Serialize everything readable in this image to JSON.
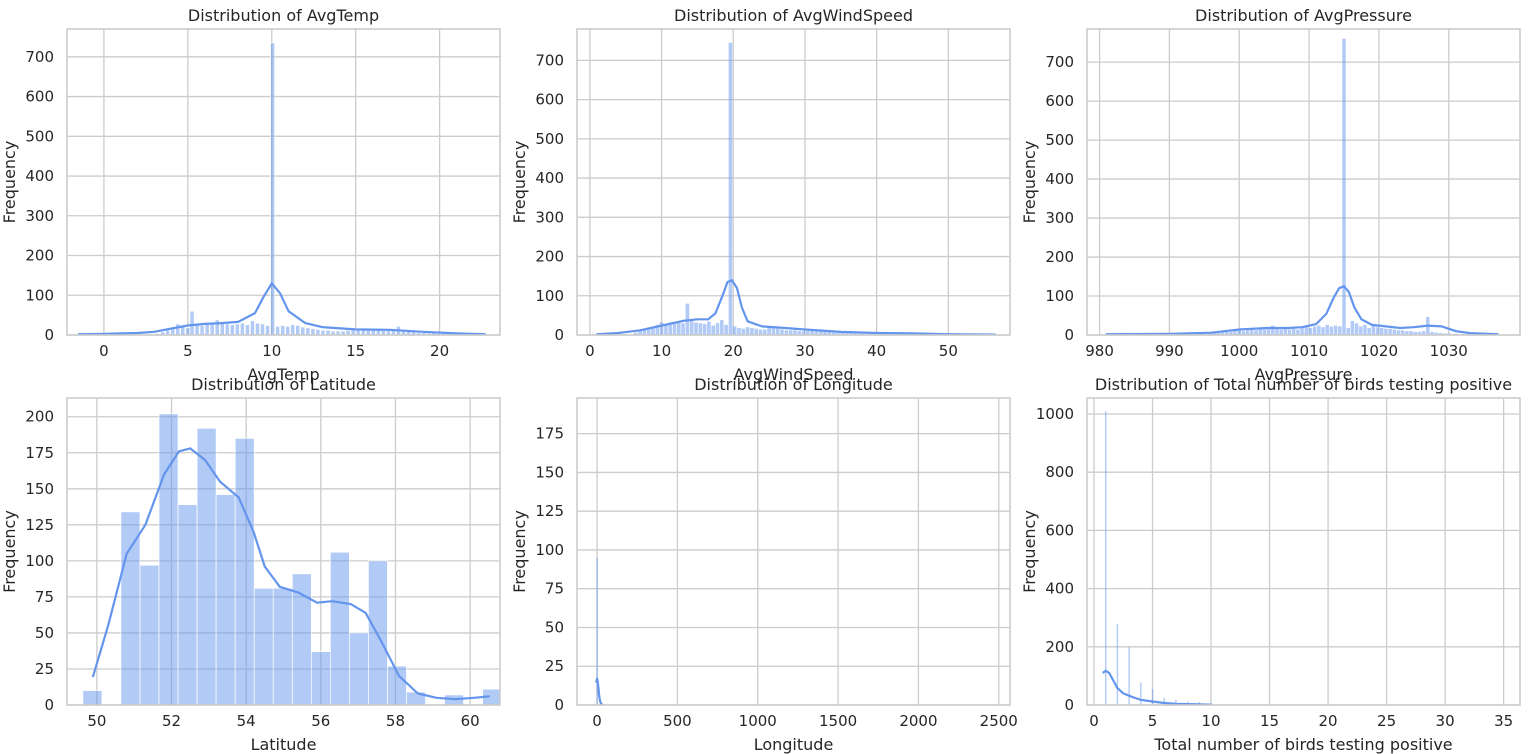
{
  "chart_data": [
    {
      "type": "bar",
      "title": "Distribution of AvgTemp",
      "xlabel": "AvgTemp",
      "ylabel": "Frequency",
      "xlim": [
        -2.2,
        23.6
      ],
      "ylim": [
        0,
        770
      ],
      "xticks": [
        0,
        5,
        10,
        15,
        20
      ],
      "yticks": [
        0,
        100,
        200,
        300,
        400,
        500,
        600,
        700
      ],
      "bin_width": 0.25,
      "bins": [
        [
          3.2,
          4
        ],
        [
          3.5,
          8
        ],
        [
          3.8,
          12
        ],
        [
          4.1,
          16
        ],
        [
          4.4,
          28
        ],
        [
          4.7,
          22
        ],
        [
          5.0,
          18
        ],
        [
          5.25,
          60
        ],
        [
          5.55,
          26
        ],
        [
          5.85,
          24
        ],
        [
          6.15,
          28
        ],
        [
          6.45,
          32
        ],
        [
          6.75,
          38
        ],
        [
          7.05,
          30
        ],
        [
          7.35,
          28
        ],
        [
          7.65,
          26
        ],
        [
          7.95,
          28
        ],
        [
          8.25,
          30
        ],
        [
          8.55,
          26
        ],
        [
          8.85,
          36
        ],
        [
          9.15,
          30
        ],
        [
          9.45,
          28
        ],
        [
          9.75,
          24
        ],
        [
          10.05,
          735
        ],
        [
          10.35,
          22
        ],
        [
          10.65,
          24
        ],
        [
          10.95,
          22
        ],
        [
          11.25,
          26
        ],
        [
          11.55,
          24
        ],
        [
          11.85,
          20
        ],
        [
          12.15,
          18
        ],
        [
          12.45,
          16
        ],
        [
          12.75,
          14
        ],
        [
          13.05,
          12
        ],
        [
          13.35,
          12
        ],
        [
          13.65,
          10
        ],
        [
          13.95,
          10
        ],
        [
          14.25,
          10
        ],
        [
          14.55,
          12
        ],
        [
          14.85,
          14
        ],
        [
          15.15,
          16
        ],
        [
          15.45,
          14
        ],
        [
          15.75,
          16
        ],
        [
          16.05,
          14
        ],
        [
          16.35,
          16
        ],
        [
          16.65,
          12
        ],
        [
          16.95,
          14
        ],
        [
          17.25,
          16
        ],
        [
          17.55,
          22
        ],
        [
          17.85,
          12
        ],
        [
          18.15,
          10
        ],
        [
          18.45,
          8
        ],
        [
          18.75,
          6
        ],
        [
          19.05,
          6
        ],
        [
          19.35,
          5
        ],
        [
          19.65,
          5
        ],
        [
          19.95,
          4
        ],
        [
          20.25,
          4
        ],
        [
          20.55,
          3
        ],
        [
          20.85,
          3
        ]
      ],
      "kde": {
        "x": [
          -1.5,
          0,
          1,
          2,
          3,
          4,
          5,
          6,
          7,
          8,
          9,
          9.5,
          10,
          10.5,
          11,
          12,
          13,
          15,
          17,
          19,
          21,
          22.7
        ],
        "y": [
          2,
          3,
          4,
          5,
          8,
          16,
          24,
          28,
          30,
          33,
          55,
          95,
          130,
          105,
          60,
          30,
          20,
          14,
          13,
          8,
          4,
          2
        ]
      }
    },
    {
      "type": "bar",
      "title": "Distribution of AvgWindSpeed",
      "xlabel": "AvgWindSpeed",
      "ylabel": "Frequency",
      "xlim": [
        -1.8,
        58.6
      ],
      "ylim": [
        0,
        780
      ],
      "xticks": [
        0,
        10,
        20,
        30,
        40,
        50
      ],
      "yticks": [
        0,
        100,
        200,
        300,
        400,
        500,
        600,
        700
      ],
      "bin_width": 0.5,
      "bins": [
        [
          6.4,
          6
        ],
        [
          7,
          10
        ],
        [
          7.6,
          14
        ],
        [
          8.2,
          18
        ],
        [
          8.8,
          22
        ],
        [
          9.4,
          26
        ],
        [
          10,
          32
        ],
        [
          10.6,
          28
        ],
        [
          11.2,
          26
        ],
        [
          11.8,
          30
        ],
        [
          12.4,
          34
        ],
        [
          13,
          30
        ],
        [
          13.6,
          80
        ],
        [
          14.2,
          36
        ],
        [
          14.8,
          32
        ],
        [
          15.4,
          30
        ],
        [
          16,
          28
        ],
        [
          16.6,
          34
        ],
        [
          17.2,
          24
        ],
        [
          17.8,
          30
        ],
        [
          18.4,
          38
        ],
        [
          19,
          26
        ],
        [
          19.6,
          745
        ],
        [
          20.2,
          22
        ],
        [
          20.8,
          18
        ],
        [
          21.4,
          16
        ],
        [
          22,
          20
        ],
        [
          22.6,
          18
        ],
        [
          23.2,
          16
        ],
        [
          23.8,
          14
        ],
        [
          24.4,
          14
        ],
        [
          25,
          20
        ],
        [
          25.6,
          18
        ],
        [
          26.2,
          16
        ],
        [
          26.8,
          14
        ],
        [
          27.4,
          12
        ],
        [
          28,
          12
        ],
        [
          28.6,
          12
        ],
        [
          29.2,
          10
        ],
        [
          29.8,
          10
        ],
        [
          30.4,
          10
        ],
        [
          31,
          12
        ],
        [
          31.6,
          14
        ],
        [
          32.2,
          12
        ],
        [
          32.8,
          8
        ],
        [
          33.4,
          8
        ],
        [
          34,
          6
        ],
        [
          34.6,
          6
        ],
        [
          35.2,
          5
        ],
        [
          35.8,
          5
        ],
        [
          36.4,
          4
        ],
        [
          37,
          4
        ],
        [
          37.6,
          3
        ],
        [
          38.2,
          3
        ],
        [
          38.8,
          3
        ],
        [
          39.4,
          2
        ],
        [
          40,
          2
        ],
        [
          42,
          2
        ],
        [
          44,
          1
        ]
      ],
      "kde": {
        "x": [
          1,
          4,
          7,
          9,
          11,
          13,
          15,
          16.5,
          17.5,
          18.5,
          19.2,
          19.8,
          20.5,
          21.2,
          22,
          24,
          27,
          30,
          35,
          40,
          45,
          50,
          56.5
        ],
        "y": [
          2,
          5,
          12,
          20,
          28,
          36,
          40,
          40,
          55,
          100,
          135,
          140,
          120,
          70,
          35,
          22,
          18,
          14,
          8,
          5,
          4,
          2,
          1
        ]
      }
    },
    {
      "type": "bar",
      "title": "Distribution of AvgPressure",
      "xlabel": "AvgPressure",
      "ylabel": "Frequency",
      "xlim": [
        978.2,
        1040.2
      ],
      "ylim": [
        0,
        785
      ],
      "xticks": [
        980,
        990,
        1000,
        1010,
        1020,
        1030
      ],
      "yticks": [
        0,
        100,
        200,
        300,
        400,
        500,
        600,
        700
      ],
      "bin_width": 0.5,
      "bins": [
        [
          994,
          4
        ],
        [
          994.6,
          4
        ],
        [
          995.2,
          5
        ],
        [
          995.8,
          5
        ],
        [
          996.4,
          6
        ],
        [
          997,
          6
        ],
        [
          997.6,
          7
        ],
        [
          998.2,
          8
        ],
        [
          998.8,
          8
        ],
        [
          999.4,
          10
        ],
        [
          1000,
          12
        ],
        [
          1000.6,
          10
        ],
        [
          1001.2,
          12
        ],
        [
          1001.8,
          14
        ],
        [
          1002.4,
          12
        ],
        [
          1003,
          16
        ],
        [
          1003.6,
          14
        ],
        [
          1004.2,
          18
        ],
        [
          1004.8,
          24
        ],
        [
          1005.4,
          16
        ],
        [
          1006,
          14
        ],
        [
          1006.6,
          16
        ],
        [
          1007.2,
          14
        ],
        [
          1007.8,
          16
        ],
        [
          1008.4,
          14
        ],
        [
          1009,
          18
        ],
        [
          1009.6,
          20
        ],
        [
          1010.2,
          18
        ],
        [
          1010.8,
          22
        ],
        [
          1011.4,
          24
        ],
        [
          1012,
          20
        ],
        [
          1012.6,
          26
        ],
        [
          1013.2,
          22
        ],
        [
          1013.8,
          24
        ],
        [
          1014.4,
          22
        ],
        [
          1015,
          760
        ],
        [
          1015.6,
          18
        ],
        [
          1016.2,
          36
        ],
        [
          1016.8,
          30
        ],
        [
          1017.4,
          22
        ],
        [
          1018,
          26
        ],
        [
          1018.6,
          18
        ],
        [
          1019.2,
          26
        ],
        [
          1019.8,
          20
        ],
        [
          1020.4,
          18
        ],
        [
          1021,
          16
        ],
        [
          1021.6,
          16
        ],
        [
          1022.2,
          14
        ],
        [
          1022.8,
          12
        ],
        [
          1023.4,
          12
        ],
        [
          1024,
          10
        ],
        [
          1024.6,
          10
        ],
        [
          1025.2,
          8
        ],
        [
          1025.8,
          8
        ],
        [
          1026.4,
          10
        ],
        [
          1027,
          46
        ],
        [
          1027.6,
          8
        ],
        [
          1028.2,
          6
        ],
        [
          1028.8,
          5
        ],
        [
          1029.4,
          4
        ],
        [
          1030,
          4
        ],
        [
          1031,
          3
        ],
        [
          1032,
          2
        ],
        [
          1033,
          2
        ]
      ],
      "kde": {
        "x": [
          981,
          990,
          996,
          1000,
          1004,
          1007,
          1009,
          1011,
          1012.5,
          1013.5,
          1014.3,
          1015,
          1015.7,
          1016.5,
          1017.5,
          1019,
          1021,
          1023,
          1025,
          1027,
          1029,
          1031,
          1033,
          1037
        ],
        "y": [
          2,
          3,
          6,
          14,
          18,
          18,
          20,
          28,
          55,
          95,
          120,
          125,
          110,
          70,
          40,
          26,
          22,
          18,
          20,
          24,
          22,
          10,
          5,
          2
        ]
      }
    },
    {
      "type": "bar",
      "title": "Distribution of Latitude",
      "xlabel": "Latitude",
      "ylabel": "Frequency",
      "xlim": [
        49.2,
        60.8
      ],
      "ylim": [
        0,
        213
      ],
      "xticks": [
        50,
        52,
        54,
        56,
        58,
        60
      ],
      "yticks": [
        0,
        25,
        50,
        75,
        100,
        125,
        150,
        175,
        200
      ],
      "bin_width": 0.51,
      "bins": [
        [
          49.88,
          10
        ],
        [
          50.39,
          0
        ],
        [
          50.9,
          134
        ],
        [
          51.41,
          97
        ],
        [
          51.92,
          202
        ],
        [
          52.43,
          139
        ],
        [
          52.94,
          192
        ],
        [
          53.45,
          146
        ],
        [
          53.96,
          185
        ],
        [
          54.47,
          81
        ],
        [
          54.98,
          81
        ],
        [
          55.49,
          91
        ],
        [
          56,
          37
        ],
        [
          56.51,
          106
        ],
        [
          57.02,
          50
        ],
        [
          57.53,
          100
        ],
        [
          58.04,
          27
        ],
        [
          58.55,
          9
        ],
        [
          59.06,
          0
        ],
        [
          59.57,
          7
        ],
        [
          60.08,
          0
        ],
        [
          60.59,
          11
        ]
      ],
      "kde": {
        "x": [
          49.9,
          50.3,
          50.8,
          51.3,
          51.8,
          52.2,
          52.5,
          52.9,
          53.3,
          53.8,
          54.2,
          54.5,
          54.9,
          55.4,
          55.9,
          56.3,
          56.8,
          57.2,
          57.6,
          58.1,
          58.6,
          59.1,
          59.6,
          60.1,
          60.5
        ],
        "y": [
          20,
          55,
          105,
          125,
          160,
          176,
          178,
          170,
          155,
          144,
          120,
          96,
          82,
          78,
          71,
          72,
          70,
          64,
          45,
          20,
          8,
          5,
          4,
          5,
          6
        ]
      }
    },
    {
      "type": "bar",
      "title": "Distribution of Longitude",
      "xlabel": "Longitude",
      "ylabel": "Frequency",
      "xlim": [
        -125,
        2570
      ],
      "ylim": [
        0,
        198
      ],
      "xticks": [
        0,
        500,
        1000,
        1500,
        2000,
        2500
      ],
      "yticks": [
        0,
        25,
        50,
        75,
        100,
        125,
        150,
        175
      ],
      "bin_width": 4,
      "bins": [
        [
          -2,
          95
        ],
        [
          3,
          0
        ]
      ],
      "kde": {
        "x": [
          -4,
          0,
          4,
          8,
          12,
          16,
          20,
          24,
          28,
          32,
          38
        ],
        "y": [
          15,
          17,
          15,
          11,
          7,
          4,
          2,
          1,
          0.5,
          0.2,
          0
        ]
      }
    },
    {
      "type": "bar",
      "title": "Distribution of Total number of birds testing positive",
      "xlabel": "Total number of birds testing positive",
      "ylabel": "Frequency",
      "xlim": [
        -0.6,
        36.4
      ],
      "ylim": [
        0,
        1055
      ],
      "xticks": [
        0,
        5,
        10,
        15,
        20,
        25,
        30,
        35
      ],
      "yticks": [
        0,
        200,
        400,
        600,
        800,
        1000
      ],
      "bin_width": 0.12,
      "bins": [
        [
          1,
          1010
        ],
        [
          2,
          278
        ],
        [
          3,
          198
        ],
        [
          4,
          78
        ],
        [
          5,
          55
        ],
        [
          6,
          25
        ],
        [
          7,
          18
        ],
        [
          8,
          12
        ],
        [
          9,
          10
        ],
        [
          10,
          6
        ]
      ],
      "kde": {
        "x": [
          0.8,
          1,
          1.3,
          1.6,
          2,
          2.5,
          3,
          3.5,
          4,
          5,
          6,
          7,
          8,
          9,
          10
        ],
        "y": [
          112,
          118,
          110,
          88,
          58,
          40,
          32,
          24,
          18,
          12,
          7,
          4,
          3,
          2,
          1
        ]
      }
    }
  ]
}
